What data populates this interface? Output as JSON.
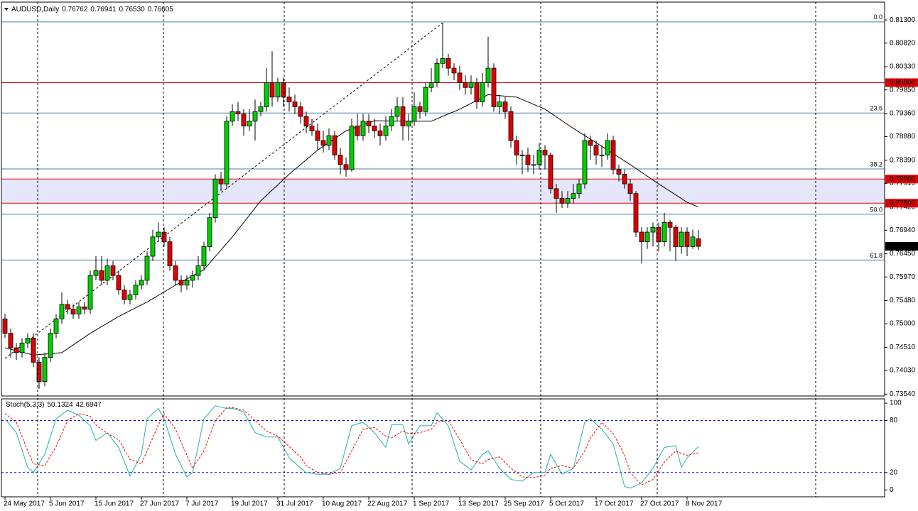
{
  "chart_data": {
    "type": "candlestick",
    "title": "AUDUSD,Daily",
    "title_values": [
      "0.76762",
      "0.76941",
      "0.76530",
      "0.76605"
    ],
    "categories": [
      "24 May 2017",
      null,
      null,
      null,
      null,
      null,
      null,
      null,
      "5 Jun 2017",
      null,
      null,
      null,
      null,
      null,
      null,
      null,
      "15 Jun 2017",
      null,
      null,
      null,
      null,
      null,
      null,
      null,
      "27 Jun 2017",
      null,
      null,
      null,
      null,
      null,
      null,
      null,
      "7 Jul 2017",
      null,
      null,
      null,
      null,
      null,
      null,
      null,
      "19 Jul 2017",
      null,
      null,
      null,
      null,
      null,
      null,
      null,
      "31 Jul 2017",
      null,
      null,
      null,
      null,
      null,
      null,
      null,
      "10 Aug 2017",
      null,
      null,
      null,
      null,
      null,
      null,
      null,
      "22 Aug 2017",
      null,
      null,
      null,
      null,
      null,
      null,
      null,
      "1 Sep 2017",
      null,
      null,
      null,
      null,
      null,
      null,
      null,
      "13 Sep 2017",
      null,
      null,
      null,
      null,
      null,
      null,
      null,
      "25 Sep 2017",
      null,
      null,
      null,
      null,
      null,
      null,
      null,
      "5 Oct 2017",
      null,
      null,
      null,
      null,
      null,
      null,
      null,
      "17 Oct 2017",
      null,
      null,
      null,
      null,
      null,
      null,
      null,
      "27 Oct 2017",
      null,
      null,
      null,
      null,
      null,
      null,
      null,
      "8 Nov 2017",
      null,
      null
    ],
    "open": [
      0.751,
      0.748,
      0.745,
      0.744,
      0.746,
      0.747,
      0.742,
      0.738,
      0.743,
      0.748,
      0.751,
      0.754,
      0.753,
      0.752,
      0.7535,
      0.753,
      0.76,
      0.761,
      0.759,
      0.762,
      0.76,
      0.757,
      0.755,
      0.756,
      0.758,
      0.759,
      0.764,
      0.768,
      0.769,
      0.767,
      0.762,
      0.759,
      0.758,
      0.759,
      0.76,
      0.762,
      0.766,
      0.772,
      0.78,
      0.779,
      0.792,
      0.794,
      0.7935,
      0.791,
      0.792,
      0.794,
      0.795,
      0.8,
      0.797,
      0.8,
      0.797,
      0.796,
      0.795,
      0.793,
      0.791,
      0.79,
      0.788,
      0.787,
      0.789,
      0.785,
      0.783,
      0.782,
      0.791,
      0.789,
      0.792,
      0.791,
      0.79,
      0.789,
      0.791,
      0.793,
      0.795,
      0.791,
      0.792,
      0.795,
      0.794,
      0.799,
      0.8,
      0.804,
      0.805,
      0.803,
      0.802,
      0.8,
      0.799,
      0.8,
      0.796,
      0.8,
      0.803,
      0.795,
      0.796,
      0.794,
      0.788,
      0.785,
      0.785,
      0.783,
      0.783,
      0.786,
      0.785,
      0.778,
      0.776,
      0.775,
      0.776,
      0.777,
      0.779,
      0.788,
      0.787,
      0.785,
      0.785,
      0.788,
      0.782,
      0.781,
      0.779,
      0.777,
      0.769,
      0.767,
      0.769,
      0.77,
      0.767,
      0.771,
      0.77,
      0.766,
      0.769,
      0.766,
      0.76762
    ],
    "high": [
      0.752,
      0.749,
      0.746,
      0.747,
      0.748,
      0.748,
      0.743,
      0.744,
      0.749,
      0.752,
      0.7565,
      0.755,
      0.754,
      0.7545,
      0.7545,
      0.761,
      0.764,
      0.764,
      0.7635,
      0.763,
      0.761,
      0.758,
      0.757,
      0.759,
      0.76,
      0.765,
      0.7695,
      0.771,
      0.77,
      0.768,
      0.763,
      0.76,
      0.76,
      0.761,
      0.764,
      0.767,
      0.773,
      0.781,
      0.7815,
      0.793,
      0.7955,
      0.796,
      0.7945,
      0.7945,
      0.7965,
      0.796,
      0.803,
      0.8065,
      0.801,
      0.801,
      0.799,
      0.7975,
      0.796,
      0.794,
      0.7925,
      0.7915,
      0.79,
      0.7905,
      0.79,
      0.7865,
      0.7845,
      0.7925,
      0.7935,
      0.7935,
      0.7935,
      0.7925,
      0.7915,
      0.793,
      0.7945,
      0.797,
      0.797,
      0.7935,
      0.798,
      0.796,
      0.8,
      0.803,
      0.805,
      0.8124,
      0.806,
      0.804,
      0.8035,
      0.8015,
      0.8015,
      0.801,
      0.802,
      0.8095,
      0.804,
      0.7975,
      0.797,
      0.795,
      0.789,
      0.786,
      0.7865,
      0.785,
      0.7875,
      0.787,
      0.7855,
      0.779,
      0.7775,
      0.7775,
      0.779,
      0.78,
      0.7895,
      0.789,
      0.788,
      0.787,
      0.7895,
      0.789,
      0.783,
      0.782,
      0.78,
      0.7775,
      0.77,
      0.77,
      0.771,
      0.771,
      0.773,
      0.7715,
      0.7705,
      0.77,
      0.77,
      0.7695,
      0.76941
    ],
    "low": [
      0.747,
      0.743,
      0.7425,
      0.743,
      0.745,
      0.741,
      0.7365,
      0.737,
      0.742,
      0.747,
      0.75,
      0.752,
      0.751,
      0.751,
      0.752,
      0.752,
      0.759,
      0.758,
      0.758,
      0.759,
      0.756,
      0.754,
      0.754,
      0.755,
      0.757,
      0.758,
      0.763,
      0.767,
      0.766,
      0.761,
      0.758,
      0.7565,
      0.757,
      0.7575,
      0.759,
      0.761,
      0.765,
      0.771,
      0.7775,
      0.778,
      0.791,
      0.792,
      0.789,
      0.79,
      0.788,
      0.793,
      0.794,
      0.795,
      0.796,
      0.795,
      0.794,
      0.7935,
      0.7915,
      0.7895,
      0.789,
      0.786,
      0.7855,
      0.786,
      0.784,
      0.781,
      0.7805,
      0.7815,
      0.788,
      0.788,
      0.7895,
      0.7885,
      0.787,
      0.788,
      0.79,
      0.792,
      0.788,
      0.788,
      0.791,
      0.7925,
      0.793,
      0.798,
      0.799,
      0.803,
      0.8015,
      0.8005,
      0.7985,
      0.7975,
      0.7975,
      0.7945,
      0.795,
      0.799,
      0.794,
      0.7935,
      0.7925,
      0.7865,
      0.783,
      0.781,
      0.7815,
      0.781,
      0.782,
      0.782,
      0.777,
      0.773,
      0.774,
      0.774,
      0.775,
      0.776,
      0.778,
      0.784,
      0.783,
      0.7825,
      0.784,
      0.781,
      0.7795,
      0.778,
      0.7755,
      0.768,
      0.7625,
      0.7655,
      0.766,
      0.765,
      0.766,
      0.765,
      0.763,
      0.7645,
      0.764,
      0.7655,
      0.7653
    ],
    "close": [
      0.748,
      0.745,
      0.744,
      0.746,
      0.747,
      0.742,
      0.738,
      0.743,
      0.748,
      0.751,
      0.754,
      0.753,
      0.752,
      0.7535,
      0.753,
      0.76,
      0.761,
      0.759,
      0.762,
      0.76,
      0.757,
      0.755,
      0.756,
      0.758,
      0.759,
      0.764,
      0.768,
      0.769,
      0.767,
      0.762,
      0.759,
      0.758,
      0.759,
      0.76,
      0.762,
      0.766,
      0.772,
      0.78,
      0.779,
      0.792,
      0.794,
      0.7935,
      0.791,
      0.792,
      0.794,
      0.795,
      0.8,
      0.797,
      0.8,
      0.797,
      0.796,
      0.795,
      0.793,
      0.791,
      0.79,
      0.788,
      0.787,
      0.789,
      0.785,
      0.783,
      0.782,
      0.791,
      0.789,
      0.792,
      0.791,
      0.79,
      0.789,
      0.791,
      0.793,
      0.795,
      0.791,
      0.792,
      0.795,
      0.794,
      0.799,
      0.8,
      0.804,
      0.805,
      0.803,
      0.802,
      0.8,
      0.799,
      0.8,
      0.796,
      0.8,
      0.803,
      0.795,
      0.796,
      0.794,
      0.788,
      0.785,
      0.785,
      0.783,
      0.783,
      0.786,
      0.785,
      0.778,
      0.776,
      0.775,
      0.776,
      0.777,
      0.779,
      0.788,
      0.787,
      0.785,
      0.785,
      0.788,
      0.782,
      0.781,
      0.779,
      0.777,
      0.769,
      0.767,
      0.769,
      0.77,
      0.767,
      0.771,
      0.77,
      0.766,
      0.769,
      0.766,
      0.768,
      0.76605
    ],
    "up_color": "#00d000",
    "down_color": "#e00000",
    "ylim": [
      0.735,
      0.8167
    ],
    "yticks": [
      {
        "value": 0.813,
        "label": "0.81300"
      },
      {
        "value": 0.8082,
        "label": "0.80820"
      },
      {
        "value": 0.8033,
        "label": "0.80330"
      },
      {
        "value": 0.7985,
        "label": "0.79850"
      },
      {
        "value": 0.7936,
        "label": "0.79360"
      },
      {
        "value": 0.7888,
        "label": "0.78880"
      },
      {
        "value": 0.7839,
        "label": "0.78390"
      },
      {
        "value": 0.7791,
        "label": "0.77910"
      },
      {
        "value": 0.7742,
        "label": "0.77420"
      },
      {
        "value": 0.7694,
        "label": "0.76940"
      },
      {
        "value": 0.7645,
        "label": "0.76450"
      },
      {
        "value": 0.7597,
        "label": "0.75970"
      },
      {
        "value": 0.7548,
        "label": "0.75480"
      },
      {
        "value": 0.75,
        "label": "0.75000"
      },
      {
        "value": 0.7451,
        "label": "0.74510"
      },
      {
        "value": 0.7403,
        "label": "0.74030"
      },
      {
        "value": 0.7354,
        "label": "0.73540"
      }
    ],
    "moving_average": {
      "color": "#000000",
      "x": [
        0,
        5,
        10,
        15,
        20,
        25,
        30,
        35,
        40,
        45,
        50,
        55,
        60,
        65,
        70,
        75,
        80,
        85,
        90,
        95,
        100,
        105,
        110,
        115,
        120,
        122
      ],
      "values": [
        0.745,
        0.7435,
        0.744,
        0.748,
        0.7515,
        0.7545,
        0.758,
        0.7612,
        0.768,
        0.7755,
        0.781,
        0.786,
        0.79,
        0.7921,
        0.792,
        0.792,
        0.7945,
        0.7975,
        0.797,
        0.7945,
        0.7905,
        0.7868,
        0.783,
        0.779,
        0.7752,
        0.7742
      ]
    },
    "levels": [
      {
        "value": 0.8,
        "label": "0.80000"
      },
      {
        "value": 0.78,
        "label": "0.78000"
      },
      {
        "value": 0.775,
        "label": "0.77500"
      }
    ],
    "level_color": "#e00000",
    "zone_color": "#e6e6fa",
    "fibonacci": {
      "color": "#4a7fa8",
      "levels": [
        {
          "ratio": {
            "value": 0,
            "label": "0.0"
          },
          "price": 0.8126
        },
        {
          "ratio": 23.6,
          "price": 0.7937
        },
        {
          "ratio": 38.2,
          "price": 0.7821
        },
        {
          "ratio": {
            "value": 50,
            "label": "50.0"
          },
          "price": 0.7727
        },
        {
          "ratio": 61.8,
          "price": 0.7632
        }
      ],
      "anchor": {
        "x": [
          0,
          77
        ],
        "y": [
          0.7428,
          0.8124
        ]
      }
    },
    "indicator": {
      "title": "Stoch(5,3,3)",
      "ylim": [
        -8,
        105
      ],
      "yticks": [
        100,
        80,
        20,
        0
      ],
      "levels": [
        80,
        20
      ],
      "level_color": "#0000e0",
      "series": [
        {
          "color": "#20b2aa",
          "dashed": false,
          "x": [
            0,
            2,
            4,
            5,
            7,
            9,
            11,
            13,
            15,
            16,
            18,
            20,
            22,
            24,
            25,
            27,
            28,
            30,
            32,
            33,
            35,
            37,
            39,
            40,
            42,
            44,
            46,
            48,
            50,
            52,
            53,
            55,
            57,
            59,
            61,
            63,
            65,
            67,
            68,
            70,
            71,
            73,
            75,
            76,
            78,
            80,
            82,
            84,
            85,
            87,
            89,
            91,
            93,
            95,
            96,
            98,
            100,
            102,
            103,
            105,
            107,
            109,
            110,
            112,
            114,
            116,
            118,
            119,
            120,
            122
          ],
          "values": [
            82,
            66,
            26,
            20,
            41,
            82,
            92,
            86,
            74,
            57,
            66,
            49,
            16,
            41,
            82,
            94,
            82,
            41,
            15,
            20,
            82,
            97,
            94,
            94,
            90,
            66,
            61,
            61,
            37,
            25,
            20,
            18,
            18,
            25,
            74,
            78,
            66,
            49,
            75,
            75,
            53,
            74,
            74,
            89,
            74,
            33,
            23,
            41,
            45,
            25,
            12,
            10,
            20,
            20,
            41,
            18,
            25,
            78,
            82,
            70,
            53,
            4,
            2,
            8,
            25,
            49,
            51,
            26,
            37,
            50.1324
          ]
        },
        {
          "color": "#ff0000",
          "dashed": true,
          "x": [
            0,
            2,
            4,
            5,
            7,
            9,
            11,
            13,
            15,
            16,
            18,
            20,
            22,
            24,
            25,
            27,
            28,
            30,
            32,
            33,
            35,
            37,
            39,
            40,
            42,
            44,
            46,
            48,
            50,
            52,
            53,
            55,
            57,
            59,
            61,
            63,
            65,
            67,
            68,
            70,
            71,
            73,
            75,
            76,
            78,
            80,
            82,
            84,
            85,
            87,
            89,
            91,
            93,
            95,
            96,
            98,
            100,
            102,
            103,
            105,
            107,
            109,
            110,
            112,
            114,
            116,
            118,
            119,
            120,
            122
          ],
          "values": [
            88,
            78,
            45,
            30,
            28,
            50,
            80,
            88,
            85,
            75,
            65,
            58,
            35,
            30,
            45,
            75,
            88,
            70,
            40,
            25,
            45,
            80,
            95,
            95,
            92,
            80,
            68,
            62,
            50,
            38,
            28,
            20,
            18,
            20,
            45,
            70,
            72,
            62,
            60,
            68,
            65,
            66,
            70,
            78,
            80,
            58,
            35,
            30,
            35,
            38,
            25,
            15,
            14,
            17,
            25,
            28,
            25,
            45,
            60,
            78,
            65,
            40,
            20,
            6,
            12,
            32,
            45,
            42,
            40,
            42.6947
          ]
        }
      ]
    }
  }
}
